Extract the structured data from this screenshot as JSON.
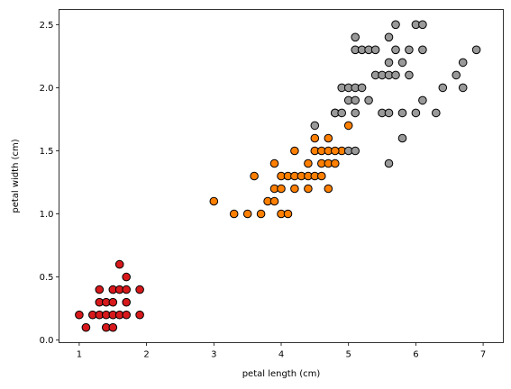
{
  "chart_data": {
    "type": "scatter",
    "title": "",
    "xlabel": "petal length (cm)",
    "ylabel": "petal width (cm)",
    "xlim": [
      0.7,
      7.3
    ],
    "ylim": [
      -0.02,
      2.62
    ],
    "xticks": [
      1,
      2,
      3,
      4,
      5,
      6,
      7
    ],
    "xtick_labels": [
      "1",
      "2",
      "3",
      "4",
      "5",
      "6",
      "7"
    ],
    "yticks": [
      0.0,
      0.5,
      1.0,
      1.5,
      2.0,
      2.5
    ],
    "ytick_labels": [
      "0.0",
      "0.5",
      "1.0",
      "1.5",
      "2.0",
      "2.5"
    ],
    "grid": false,
    "legend": "none",
    "series": [
      {
        "color": "#d7191c",
        "points": [
          [
            1.0,
            0.2
          ],
          [
            1.1,
            0.1
          ],
          [
            1.2,
            0.2
          ],
          [
            1.3,
            0.2
          ],
          [
            1.3,
            0.3
          ],
          [
            1.3,
            0.4
          ],
          [
            1.4,
            0.1
          ],
          [
            1.4,
            0.2
          ],
          [
            1.4,
            0.3
          ],
          [
            1.5,
            0.1
          ],
          [
            1.5,
            0.2
          ],
          [
            1.5,
            0.3
          ],
          [
            1.5,
            0.4
          ],
          [
            1.6,
            0.2
          ],
          [
            1.6,
            0.4
          ],
          [
            1.6,
            0.6
          ],
          [
            1.7,
            0.2
          ],
          [
            1.7,
            0.3
          ],
          [
            1.7,
            0.4
          ],
          [
            1.7,
            0.5
          ],
          [
            1.9,
            0.2
          ],
          [
            1.9,
            0.4
          ]
        ]
      },
      {
        "color": "#ff7f00",
        "points": [
          [
            3.0,
            1.1
          ],
          [
            3.3,
            1.0
          ],
          [
            3.5,
            1.0
          ],
          [
            3.6,
            1.3
          ],
          [
            3.7,
            1.0
          ],
          [
            3.8,
            1.1
          ],
          [
            3.9,
            1.1
          ],
          [
            3.9,
            1.2
          ],
          [
            3.9,
            1.4
          ],
          [
            4.0,
            1.0
          ],
          [
            4.0,
            1.2
          ],
          [
            4.0,
            1.3
          ],
          [
            4.1,
            1.0
          ],
          [
            4.1,
            1.3
          ],
          [
            4.2,
            1.2
          ],
          [
            4.2,
            1.3
          ],
          [
            4.2,
            1.5
          ],
          [
            4.3,
            1.3
          ],
          [
            4.4,
            1.2
          ],
          [
            4.4,
            1.3
          ],
          [
            4.4,
            1.4
          ],
          [
            4.5,
            1.3
          ],
          [
            4.5,
            1.5
          ],
          [
            4.6,
            1.3
          ],
          [
            4.6,
            1.4
          ],
          [
            4.6,
            1.5
          ],
          [
            4.7,
            1.2
          ],
          [
            4.7,
            1.4
          ],
          [
            4.7,
            1.5
          ],
          [
            4.7,
            1.6
          ],
          [
            4.8,
            1.4
          ],
          [
            4.8,
            1.8
          ],
          [
            4.9,
            1.5
          ],
          [
            5.0,
            1.7
          ],
          [
            4.5,
            1.6
          ],
          [
            4.8,
            1.5
          ]
        ]
      },
      {
        "color": "#999999",
        "points": [
          [
            4.5,
            1.7
          ],
          [
            4.8,
            1.8
          ],
          [
            4.9,
            1.8
          ],
          [
            4.9,
            2.0
          ],
          [
            5.0,
            1.5
          ],
          [
            5.0,
            1.9
          ],
          [
            5.0,
            2.0
          ],
          [
            5.1,
            1.5
          ],
          [
            5.1,
            1.8
          ],
          [
            5.1,
            1.9
          ],
          [
            5.1,
            2.0
          ],
          [
            5.1,
            2.3
          ],
          [
            5.1,
            2.4
          ],
          [
            5.2,
            2.0
          ],
          [
            5.2,
            2.3
          ],
          [
            5.3,
            1.9
          ],
          [
            5.3,
            2.3
          ],
          [
            5.4,
            2.1
          ],
          [
            5.4,
            2.3
          ],
          [
            5.5,
            1.8
          ],
          [
            5.5,
            2.1
          ],
          [
            5.6,
            1.4
          ],
          [
            5.6,
            1.8
          ],
          [
            5.6,
            2.1
          ],
          [
            5.6,
            2.2
          ],
          [
            5.6,
            2.4
          ],
          [
            5.7,
            2.1
          ],
          [
            5.7,
            2.3
          ],
          [
            5.7,
            2.5
          ],
          [
            5.8,
            1.6
          ],
          [
            5.8,
            1.8
          ],
          [
            5.8,
            2.2
          ],
          [
            5.9,
            2.1
          ],
          [
            5.9,
            2.3
          ],
          [
            6.0,
            1.8
          ],
          [
            6.0,
            2.5
          ],
          [
            6.1,
            1.9
          ],
          [
            6.1,
            2.3
          ],
          [
            6.1,
            2.5
          ],
          [
            6.3,
            1.8
          ],
          [
            6.4,
            2.0
          ],
          [
            6.6,
            2.1
          ],
          [
            6.7,
            2.0
          ],
          [
            6.7,
            2.2
          ],
          [
            6.9,
            2.3
          ]
        ]
      }
    ]
  }
}
